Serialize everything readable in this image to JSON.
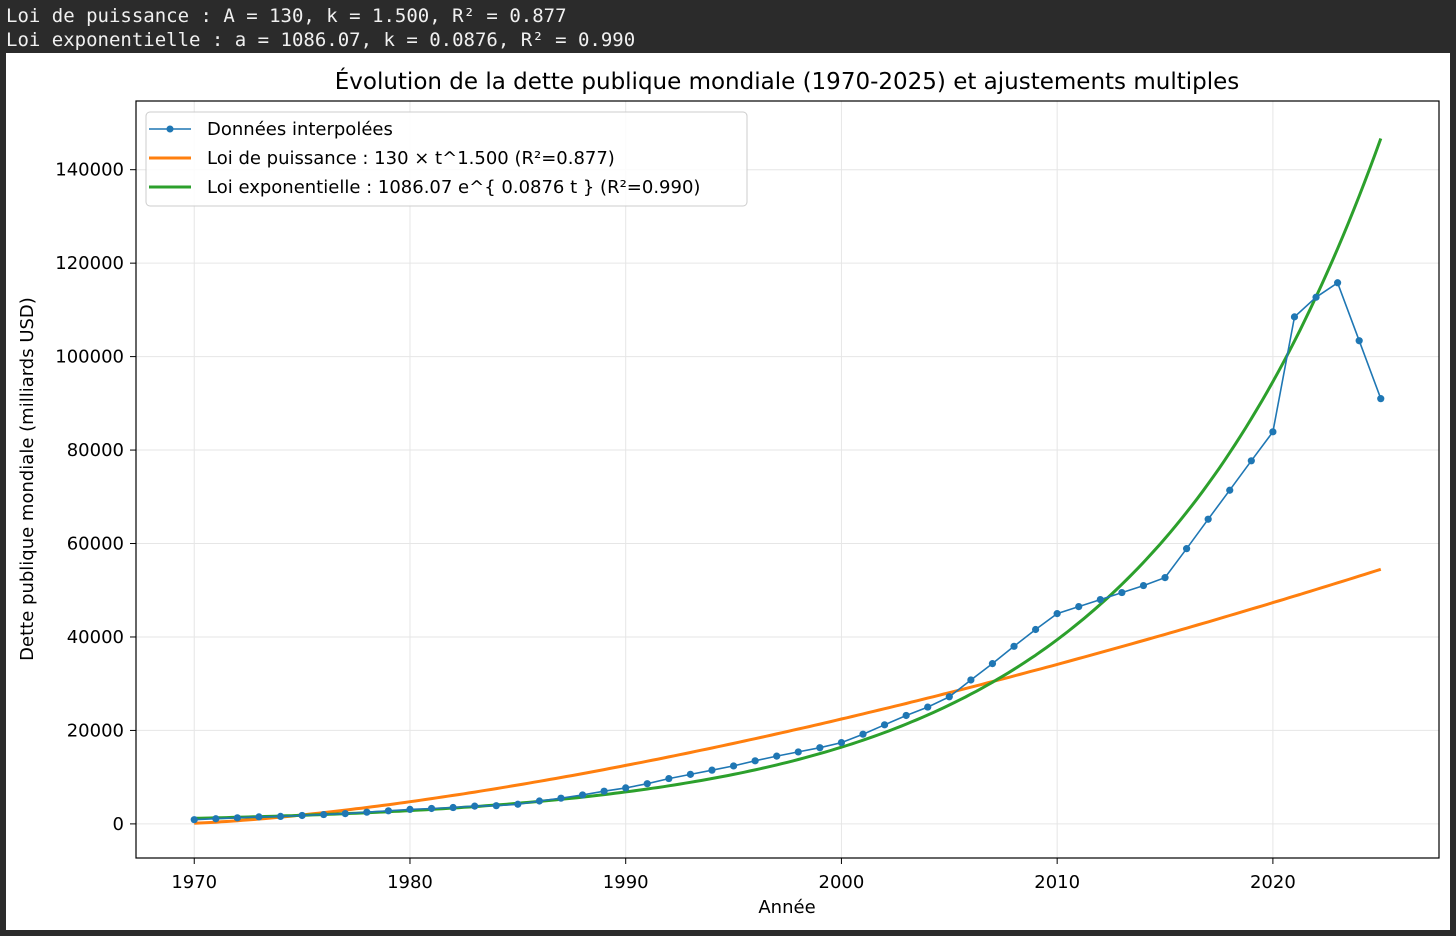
{
  "console": {
    "line1": "Loi de puissance : A = 130, k = 1.500, R² = 0.877",
    "line2": "Loi exponentielle : a = 1086.07, k = 0.0876, R² = 0.990"
  },
  "chart_data": {
    "type": "line",
    "title": "Évolution de la dette publique mondiale (1970-2025) et ajustements multiples",
    "xlabel": "Année",
    "ylabel": "Dette publique mondiale (milliards USD)",
    "xlim": [
      1967.3,
      2027.7
    ],
    "ylim": [
      -7300,
      154700
    ],
    "xticks": [
      1970,
      1980,
      1990,
      2000,
      2010,
      2020
    ],
    "yticks": [
      0,
      20000,
      40000,
      60000,
      80000,
      100000,
      120000,
      140000
    ],
    "grid": true,
    "legend_position": "top-left",
    "x": [
      1970,
      1971,
      1972,
      1973,
      1974,
      1975,
      1976,
      1977,
      1978,
      1979,
      1980,
      1981,
      1982,
      1983,
      1984,
      1985,
      1986,
      1987,
      1988,
      1989,
      1990,
      1991,
      1992,
      1993,
      1994,
      1995,
      1996,
      1997,
      1998,
      1999,
      2000,
      2001,
      2002,
      2003,
      2004,
      2005,
      2006,
      2007,
      2008,
      2009,
      2010,
      2011,
      2012,
      2013,
      2014,
      2015,
      2016,
      2017,
      2018,
      2019,
      2020,
      2021,
      2022,
      2023,
      2024,
      2025
    ],
    "series": [
      {
        "name": "Données interpolées",
        "color": "#1f77b4",
        "style": "line-marker",
        "values": [
          900,
          1100,
          1300,
          1500,
          1600,
          1800,
          2000,
          2200,
          2500,
          2800,
          3100,
          3300,
          3500,
          3800,
          3900,
          4200,
          4900,
          5500,
          6200,
          7000,
          7700,
          8600,
          9700,
          10600,
          11500,
          12400,
          13500,
          14500,
          15400,
          16300,
          17400,
          19200,
          21200,
          23200,
          25000,
          27200,
          30800,
          34300,
          38000,
          41600,
          45000,
          46500,
          48000,
          49500,
          51000,
          52700,
          58900,
          65200,
          71400,
          77700,
          83900,
          108500,
          112700,
          115800,
          103400,
          91000
        ]
      },
      {
        "name": "Loi de puissance : 130 × t^1.500 (R²=0.877)",
        "color": "#ff7f0e",
        "style": "line",
        "formula": "power",
        "A": 130,
        "k": 1.5
      },
      {
        "name": "Loi exponentielle : 1086.07 e^{ 0.0876 t } (R²=0.990)",
        "color": "#2ca02c",
        "style": "line",
        "formula": "exponential",
        "a": 1086.07,
        "k": 0.0876
      }
    ]
  }
}
